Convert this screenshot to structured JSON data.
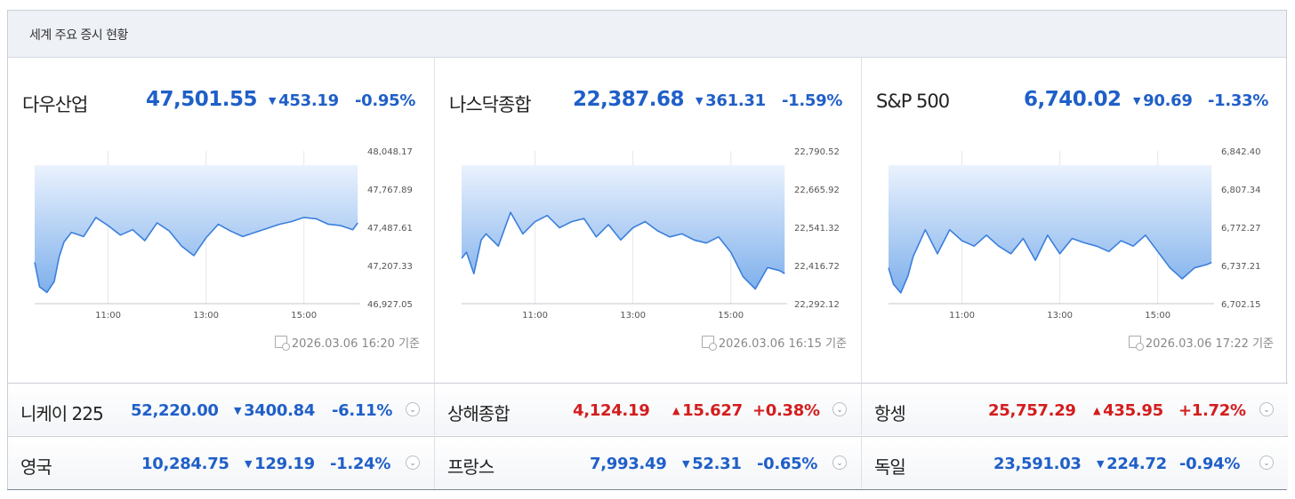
{
  "header": {
    "title": "세계 주요 증시 현황"
  },
  "colors": {
    "down": "#1f5fc8",
    "up": "#d31d1d",
    "line": "#3b7fdc",
    "fill_top": "#eaf2fd",
    "fill_bottom": "#7fb0ec"
  },
  "panels": [
    {
      "name": "다우산업",
      "value": "47,501.55",
      "change_arrow": "▼",
      "change": "453.19",
      "percent": "-0.95%",
      "timestamp": "2026.03.06 16:20 기준"
    },
    {
      "name": "나스닥종합",
      "value": "22,387.68",
      "change_arrow": "▼",
      "change": "361.31",
      "percent": "-1.59%",
      "timestamp": "2026.03.06 16:15 기준"
    },
    {
      "name": "S&P 500",
      "value": "6,740.02",
      "change_arrow": "▼",
      "change": "90.69",
      "percent": "-1.33%",
      "timestamp": "2026.03.06 17:22 기준"
    }
  ],
  "rows": [
    [
      {
        "name": "니케이 225",
        "value": "52,220.00",
        "arrow": "▼",
        "change": "3400.84",
        "percent": "-6.11%",
        "dir": "down"
      },
      {
        "name": "상해종합",
        "value": "4,124.19",
        "arrow": "▲",
        "change": "15.627",
        "percent": "+0.38%",
        "dir": "up"
      },
      {
        "name": "항셍",
        "value": "25,757.29",
        "arrow": "▲",
        "change": "435.95",
        "percent": "+1.72%",
        "dir": "up"
      }
    ],
    [
      {
        "name": "영국",
        "value": "10,284.75",
        "arrow": "▼",
        "change": "129.19",
        "percent": "-1.24%",
        "dir": "down"
      },
      {
        "name": "프랑스",
        "value": "7,993.49",
        "arrow": "▼",
        "change": "52.31",
        "percent": "-0.65%",
        "dir": "down"
      },
      {
        "name": "독일",
        "value": "23,591.03",
        "arrow": "▼",
        "change": "224.72",
        "percent": "-0.94%",
        "dir": "down"
      }
    ]
  ],
  "chart_data": [
    {
      "type": "area",
      "x_ticks": [
        "11:00",
        "13:00",
        "15:00"
      ],
      "y_ticks": [
        "48,048.17",
        "47,767.89",
        "47,487.61",
        "47,207.33",
        "46,927.05"
      ],
      "ylim": [
        46927.05,
        48048.17
      ],
      "grid": "vertical",
      "x_hours": [
        9.5,
        9.6,
        9.75,
        9.9,
        10.0,
        10.1,
        10.25,
        10.5,
        10.75,
        11.0,
        11.25,
        11.5,
        11.75,
        12.0,
        12.25,
        12.5,
        12.75,
        13.0,
        13.25,
        13.5,
        13.75,
        14.0,
        14.25,
        14.5,
        14.75,
        15.0,
        15.25,
        15.5,
        15.75,
        16.0,
        16.1
      ],
      "values": [
        47230,
        47050,
        47010,
        47090,
        47270,
        47380,
        47450,
        47420,
        47560,
        47500,
        47430,
        47470,
        47390,
        47520,
        47460,
        47350,
        47280,
        47410,
        47510,
        47460,
        47420,
        47450,
        47480,
        47510,
        47530,
        47560,
        47550,
        47510,
        47500,
        47470,
        47520
      ]
    },
    {
      "type": "area",
      "x_ticks": [
        "11:00",
        "13:00",
        "15:00"
      ],
      "y_ticks": [
        "22,790.52",
        "22,665.92",
        "22,541.32",
        "22,416.72",
        "22,292.12"
      ],
      "ylim": [
        22292.12,
        22790.52
      ],
      "grid": "vertical",
      "x_hours": [
        9.5,
        9.6,
        9.75,
        9.9,
        10.0,
        10.25,
        10.5,
        10.75,
        11.0,
        11.25,
        11.5,
        11.75,
        12.0,
        12.25,
        12.5,
        12.75,
        13.0,
        13.25,
        13.5,
        13.75,
        14.0,
        14.25,
        14.5,
        14.75,
        15.0,
        15.25,
        15.5,
        15.75,
        16.0,
        16.1
      ],
      "values": [
        22440,
        22460,
        22390,
        22500,
        22520,
        22480,
        22590,
        22520,
        22560,
        22580,
        22540,
        22560,
        22570,
        22510,
        22550,
        22500,
        22540,
        22560,
        22530,
        22510,
        22520,
        22500,
        22490,
        22510,
        22460,
        22380,
        22340,
        22410,
        22400,
        22390
      ]
    },
    {
      "type": "area",
      "x_ticks": [
        "11:00",
        "13:00",
        "15:00"
      ],
      "y_ticks": [
        "6,842.40",
        "6,807.34",
        "6,772.27",
        "6,737.21",
        "6,702.15"
      ],
      "ylim": [
        6702.15,
        6842.4
      ],
      "grid": "vertical",
      "x_hours": [
        9.5,
        9.6,
        9.75,
        9.9,
        10.0,
        10.25,
        10.5,
        10.75,
        11.0,
        11.25,
        11.5,
        11.75,
        12.0,
        12.25,
        12.5,
        12.75,
        13.0,
        13.25,
        13.5,
        13.75,
        14.0,
        14.25,
        14.5,
        14.75,
        15.0,
        15.25,
        15.5,
        15.75,
        16.0,
        16.1
      ],
      "values": [
        6735,
        6720,
        6712,
        6728,
        6745,
        6770,
        6748,
        6770,
        6760,
        6755,
        6765,
        6755,
        6748,
        6762,
        6742,
        6765,
        6748,
        6762,
        6758,
        6755,
        6750,
        6760,
        6755,
        6765,
        6750,
        6735,
        6725,
        6735,
        6738,
        6740
      ]
    }
  ]
}
